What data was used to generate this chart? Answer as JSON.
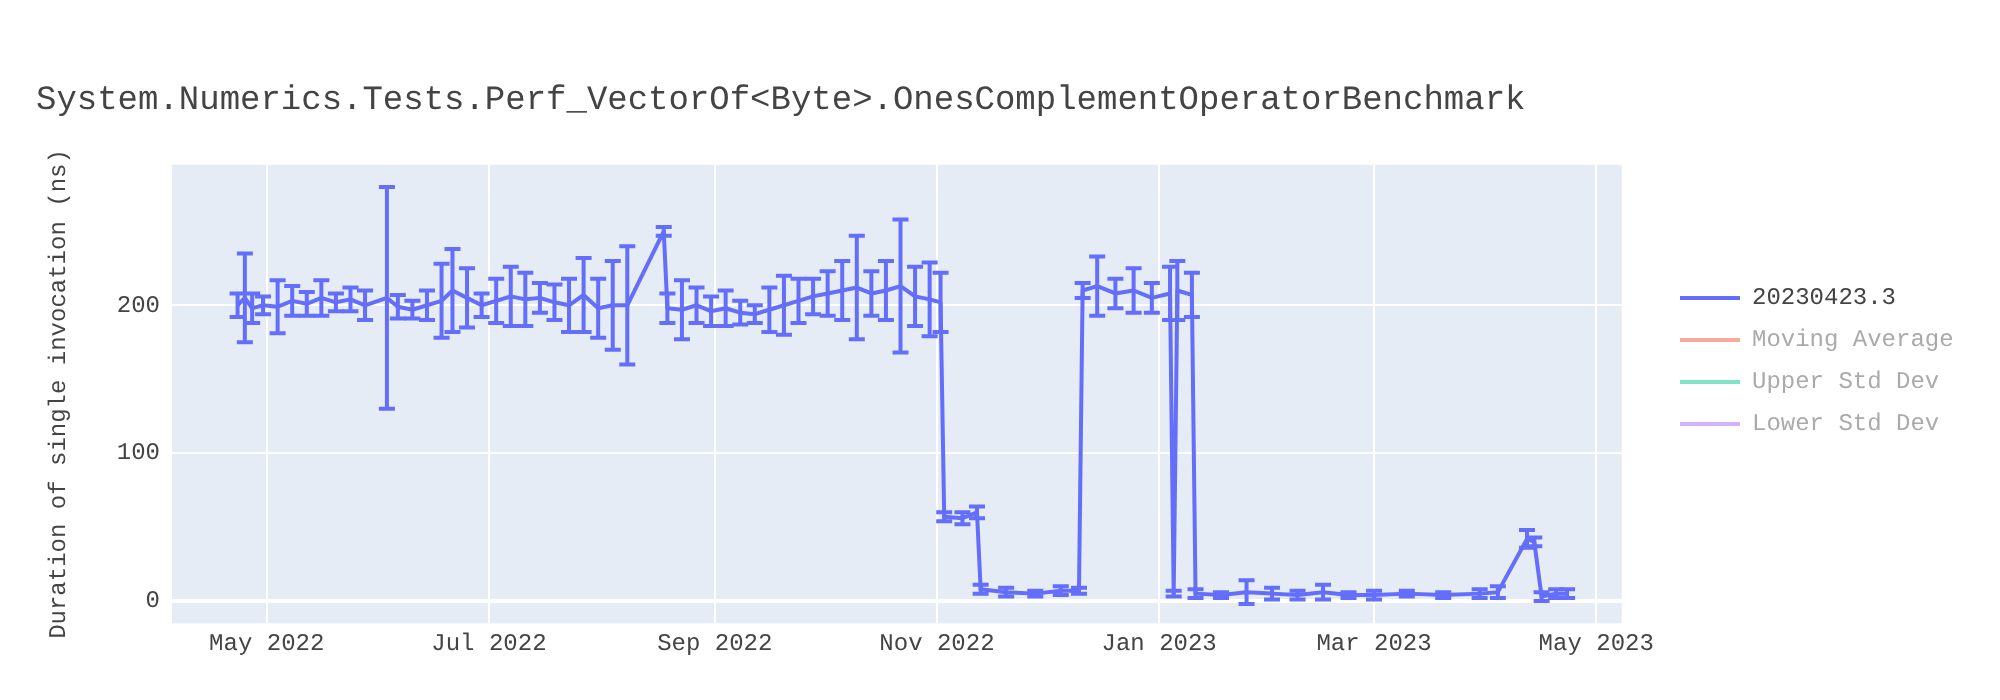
{
  "chart_data": {
    "type": "line",
    "title": "System.Numerics.Tests.Perf_VectorOf<Byte>.OnesComplementOperatorBenchmark",
    "ylabel": "Duration of single invocation (ns)",
    "xlim": [
      "2022-04-05",
      "2023-05-08"
    ],
    "xticks": [
      {
        "value": "2022-05-01",
        "label": "May 2022"
      },
      {
        "value": "2022-07-01",
        "label": "Jul 2022"
      },
      {
        "value": "2022-09-01",
        "label": "Sep 2022"
      },
      {
        "value": "2022-11-01",
        "label": "Nov 2022"
      },
      {
        "value": "2023-01-01",
        "label": "Jan 2023"
      },
      {
        "value": "2023-03-01",
        "label": "Mar 2023"
      },
      {
        "value": "2023-05-01",
        "label": "May 2023"
      }
    ],
    "ylim": [
      -15,
      295
    ],
    "yticks": [
      0,
      100,
      200
    ],
    "grid": true,
    "legend": "top right",
    "marker": "none",
    "line_style": "solid",
    "series": [
      {
        "name": "20230423.3",
        "color": "#636efa",
        "x": [
          "2022-04-23",
          "2022-04-25",
          "2022-04-27",
          "2022-04-30",
          "2022-05-04",
          "2022-05-08",
          "2022-05-12",
          "2022-05-16",
          "2022-05-20",
          "2022-05-24",
          "2022-05-28",
          "2022-06-03",
          "2022-06-06",
          "2022-06-10",
          "2022-06-14",
          "2022-06-18",
          "2022-06-21",
          "2022-06-25",
          "2022-06-29",
          "2022-07-03",
          "2022-07-07",
          "2022-07-11",
          "2022-07-15",
          "2022-07-19",
          "2022-07-23",
          "2022-07-27",
          "2022-07-31",
          "2022-08-04",
          "2022-08-08",
          "2022-08-18",
          "2022-08-19",
          "2022-08-23",
          "2022-08-27",
          "2022-08-31",
          "2022-09-04",
          "2022-09-08",
          "2022-09-12",
          "2022-09-16",
          "2022-09-20",
          "2022-09-24",
          "2022-09-28",
          "2022-10-02",
          "2022-10-06",
          "2022-10-10",
          "2022-10-14",
          "2022-10-18",
          "2022-10-22",
          "2022-10-26",
          "2022-10-30",
          "2022-11-02",
          "2022-11-03",
          "2022-11-08",
          "2022-11-12",
          "2022-11-13",
          "2022-11-20",
          "2022-11-28",
          "2022-12-05",
          "2022-12-10",
          "2022-12-11",
          "2022-12-15",
          "2022-12-20",
          "2022-12-25",
          "2022-12-30",
          "2023-01-04",
          "2023-01-05",
          "2023-01-06",
          "2023-01-10",
          "2023-01-11",
          "2023-01-18",
          "2023-01-25",
          "2023-02-01",
          "2023-02-08",
          "2023-02-15",
          "2023-02-22",
          "2023-03-01",
          "2023-03-10",
          "2023-03-20",
          "2023-03-30",
          "2023-04-04",
          "2023-04-12",
          "2023-04-14",
          "2023-04-16",
          "2023-04-20",
          "2023-04-23"
        ],
        "values": [
          200,
          205,
          198,
          200,
          199,
          203,
          201,
          205,
          202,
          204,
          200,
          205,
          199,
          197,
          200,
          203,
          210,
          205,
          200,
          203,
          206,
          204,
          205,
          202,
          200,
          207,
          198,
          200,
          200,
          250,
          198,
          197,
          200,
          196,
          198,
          195,
          194,
          197,
          200,
          203,
          206,
          208,
          210,
          212,
          208,
          210,
          213,
          206,
          204,
          202,
          57,
          56,
          60,
          8,
          6,
          5,
          7,
          7,
          210,
          213,
          208,
          210,
          205,
          208,
          5,
          210,
          207,
          5,
          4,
          6,
          5,
          4,
          6,
          4,
          4,
          5,
          4,
          5,
          6,
          42,
          40,
          3,
          5,
          5
        ],
        "errors": [
          8,
          30,
          10,
          6,
          18,
          10,
          8,
          12,
          6,
          8,
          10,
          75,
          8,
          6,
          10,
          25,
          28,
          20,
          8,
          15,
          20,
          18,
          10,
          12,
          18,
          25,
          20,
          30,
          40,
          3,
          10,
          20,
          12,
          10,
          12,
          8,
          6,
          15,
          20,
          15,
          12,
          15,
          20,
          35,
          15,
          20,
          45,
          20,
          25,
          20,
          3,
          4,
          4,
          3,
          3,
          2,
          3,
          2,
          5,
          20,
          10,
          15,
          10,
          18,
          2,
          20,
          15,
          3,
          2,
          8,
          4,
          3,
          5,
          2,
          3,
          2,
          2,
          3,
          4,
          6,
          3,
          3,
          3,
          3
        ]
      },
      {
        "name": "Moving Average",
        "color": "#ef553b"
      },
      {
        "name": "Upper Std Dev",
        "color": "#00cc96"
      },
      {
        "name": "Lower Std Dev",
        "color": "#ab63fa"
      }
    ]
  }
}
